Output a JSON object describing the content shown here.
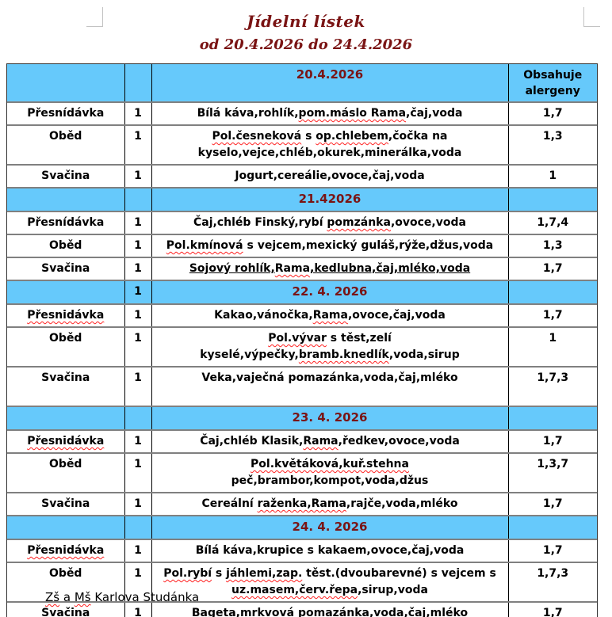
{
  "colors": {
    "header_blue": "#66c9fb",
    "date_red": "#7a1414",
    "squiggle_red": "#ff2020",
    "grid_gray": "#808080"
  },
  "page": {
    "title": "Jídelní lístek",
    "subtitle": "od 20.4.2026 do 24.4.2026",
    "footer_segments": [
      {
        "t": "Zš",
        "sp": true
      },
      {
        "t": " a "
      },
      {
        "t": "Mš",
        "sp": true
      },
      {
        "t": " Karlova Studánka"
      }
    ]
  },
  "table": {
    "allergen_header": "Obsahuje alergeny",
    "sections": [
      {
        "date": "20.4.2026",
        "qty_header": "",
        "rows": [
          {
            "meal": [
              {
                "t": "Přesnídávka"
              }
            ],
            "qty": "1",
            "menu_lines": [
              [
                {
                  "t": "Bílá káva,rohlík,"
                },
                {
                  "t": "pom.máslo Rama",
                  "sp": true
                },
                {
                  "t": ",čaj,voda"
                }
              ]
            ],
            "allergens": "1,7"
          },
          {
            "meal": [
              {
                "t": "Oběd"
              }
            ],
            "qty": "1",
            "menu_lines": [
              [
                {
                  "t": "Pol.česneková",
                  "sp": true
                },
                {
                  "t": " s "
                },
                {
                  "t": "op.chlebem",
                  "sp": true
                },
                {
                  "t": ",čočka na"
                }
              ],
              [
                {
                  "t": "kyselo,vejce,chléb,okurek,minerálka,voda"
                }
              ]
            ],
            "allergens": "1,3"
          },
          {
            "meal": [
              {
                "t": "Svačina"
              }
            ],
            "qty": "1",
            "menu_lines": [
              [
                {
                  "t": "Jogurt,cereálie,ovoce,čaj,voda"
                }
              ]
            ],
            "allergens": "1"
          }
        ]
      },
      {
        "date": "21.42026",
        "qty_header": "",
        "rows": [
          {
            "meal": [
              {
                "t": "Přesnídávka"
              }
            ],
            "qty": "1",
            "menu_lines": [
              [
                {
                  "t": "Čaj,chléb Finský,rybí "
                },
                {
                  "t": "pomzánka",
                  "sp": true
                },
                {
                  "t": ",ovoce,voda"
                }
              ]
            ],
            "allergens": "1,7,4"
          },
          {
            "meal": [
              {
                "t": "Oběd"
              }
            ],
            "qty": "1",
            "menu_lines": [
              [
                {
                  "t": "Pol.kmínová",
                  "sp": true
                },
                {
                  "t": " s vejcem,mexický guláš,rýže,džus,voda"
                }
              ]
            ],
            "allergens": "1,3"
          },
          {
            "meal": [
              {
                "t": "Svačina"
              }
            ],
            "qty": "1",
            "menu_lines": [
              [
                {
                  "t": "Sojový rohlík,",
                  "u": true
                },
                {
                  "t": "Rama",
                  "u": true,
                  "sp": true
                },
                {
                  "t": ",kedlubna,čaj,mléko,voda",
                  "u": true
                }
              ]
            ],
            "allergens": "1,7"
          }
        ]
      },
      {
        "date": "22. 4. 2026",
        "qty_header": "1",
        "rows": [
          {
            "meal": [
              {
                "t": "Přesnidávka",
                "sp": true
              }
            ],
            "qty": "1",
            "menu_lines": [
              [
                {
                  "t": "Kakao,vánočka,"
                },
                {
                  "t": "Rama",
                  "sp": true
                },
                {
                  "t": ",ovoce,čaj,voda"
                }
              ]
            ],
            "allergens": "1,7"
          },
          {
            "meal": [
              {
                "t": "Oběd"
              }
            ],
            "qty": "1",
            "menu_lines": [
              [
                {
                  "t": "Pol.vývar",
                  "sp": true
                },
                {
                  "t": " s těst,zelí kyselé,výpečky,"
                },
                {
                  "t": "bramb.knedlík",
                  "sp": true
                },
                {
                  "t": ",voda,sirup"
                }
              ]
            ],
            "allergens": "1"
          },
          {
            "meal": [
              {
                "t": "Svačina"
              }
            ],
            "qty": "1",
            "menu_lines": [
              [
                {
                  "t": "Veka,vaječná pomazánka,voda,čaj,mléko"
                }
              ],
              []
            ],
            "allergens": "1,7,3"
          }
        ]
      },
      {
        "date": "23. 4. 2026",
        "qty_header": "",
        "rows": [
          {
            "meal": [
              {
                "t": "Přesnidávka",
                "sp": true
              }
            ],
            "qty": "1",
            "menu_lines": [
              [
                {
                  "t": "Čaj,chléb Klasik,"
                },
                {
                  "t": "Rama",
                  "sp": true
                },
                {
                  "t": ",ředkev,ovoce,voda"
                }
              ]
            ],
            "allergens": "1,7"
          },
          {
            "meal": [
              {
                "t": "Oběd"
              }
            ],
            "qty": "1",
            "menu_lines": [
              [
                {
                  "t": "Pol.květáková,kuř.stehna",
                  "sp": true
                },
                {
                  "t": " peč,brambor,kompot,voda,džus"
                }
              ]
            ],
            "allergens": "1,3,7"
          },
          {
            "meal": [
              {
                "t": "Svačina"
              }
            ],
            "qty": "1",
            "menu_lines": [
              [
                {
                  "t": "Cereální "
                },
                {
                  "t": "raženka,Rama",
                  "sp": true
                },
                {
                  "t": ",rajče,voda,mléko"
                }
              ]
            ],
            "allergens": "1,7"
          }
        ]
      },
      {
        "date": "24. 4. 2026",
        "qty_header": "",
        "rows": [
          {
            "meal": [
              {
                "t": "Přesnidávka",
                "sp": true
              }
            ],
            "qty": "1",
            "menu_lines": [
              [
                {
                  "t": "Bílá káva,krupice s kakaem,ovoce,čaj,voda"
                }
              ]
            ],
            "allergens": "1,7"
          },
          {
            "meal": [
              {
                "t": "Oběd"
              }
            ],
            "qty": "1",
            "menu_lines": [
              [
                {
                  "t": "Pol.rybí",
                  "sp": true
                },
                {
                  "t": " s "
                },
                {
                  "t": "jáhlemi,zap.",
                  "sp": true
                },
                {
                  "t": " těst.(dvoubarevné) s vejcem s"
                }
              ],
              [
                {
                  "t": "uz.masem,červ.řepa",
                  "sp": true
                },
                {
                  "t": ",sirup,voda"
                }
              ]
            ],
            "allergens": "1,7,3"
          },
          {
            "meal": [
              {
                "t": "Svačina"
              }
            ],
            "qty": "1",
            "menu_lines": [
              [
                {
                  "t": "Bageta,mrkvová pomazánka,voda,čaj,mléko"
                }
              ],
              []
            ],
            "allergens": "1,7"
          }
        ]
      }
    ]
  }
}
